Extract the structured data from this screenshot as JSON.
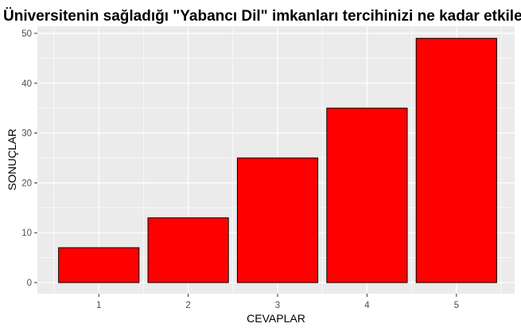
{
  "chart_data": {
    "type": "bar",
    "title": "Üniversitenin sağladığı \"Yabancı Dil\" imkanları tercihinizi ne kadar etkiledi?",
    "xlabel": "CEVAPLAR",
    "ylabel": "SONUÇLAR",
    "categories": [
      "1",
      "2",
      "3",
      "4",
      "5"
    ],
    "values": [
      7,
      13,
      25,
      35,
      49
    ],
    "ylim": [
      0,
      50
    ],
    "yticks": [
      "0",
      "10",
      "20",
      "30",
      "40",
      "50"
    ],
    "bar_color": "#ff0000",
    "bar_outline": "#000000",
    "panel_background": "#ebebeb",
    "grid": true,
    "legend": "none"
  }
}
